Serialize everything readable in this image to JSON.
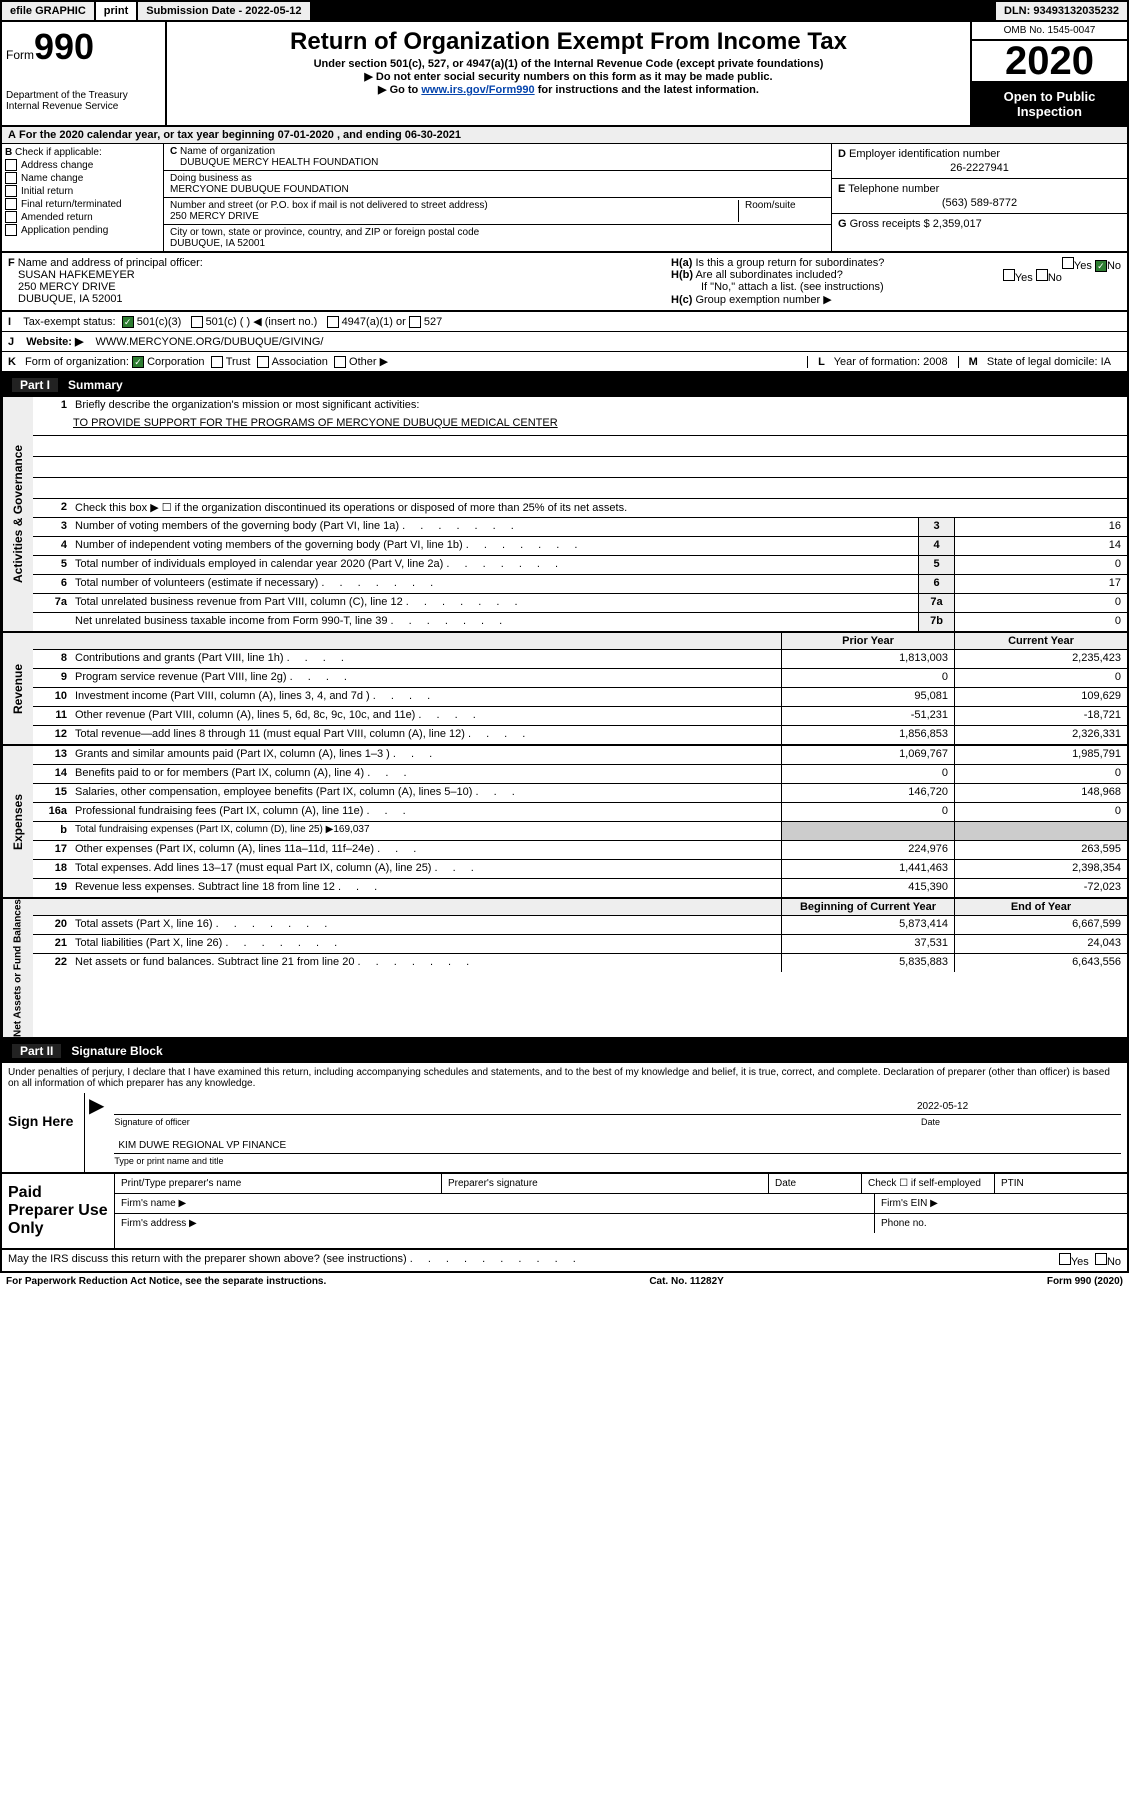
{
  "topbar": {
    "efile": "efile GRAPHIC",
    "print": "print",
    "submission": "Submission Date - 2022-05-12",
    "dln": "DLN: 93493132035232"
  },
  "header": {
    "form_prefix": "Form",
    "form_number": "990",
    "dept": "Department of the Treasury",
    "irs": "Internal Revenue Service",
    "title": "Return of Organization Exempt From Income Tax",
    "subtitle": "Under section 501(c), 527, or 4947(a)(1) of the Internal Revenue Code (except private foundations)",
    "note1": "Do not enter social security numbers on this form as it may be made public.",
    "note2_pre": "Go to ",
    "note2_link": "www.irs.gov/Form990",
    "note2_post": " for instructions and the latest information.",
    "omb": "OMB No. 1545-0047",
    "year": "2020",
    "inspect": "Open to Public Inspection"
  },
  "taxyear": "For the 2020 calendar year, or tax year beginning 07-01-2020   , and ending 06-30-2021",
  "boxB": {
    "label": "Check if applicable:",
    "items": [
      "Address change",
      "Name change",
      "Initial return",
      "Final return/terminated",
      "Amended return",
      "Application pending"
    ]
  },
  "boxC": {
    "label_name": "Name of organization",
    "name": "DUBUQUE MERCY HEALTH FOUNDATION",
    "dba_label": "Doing business as",
    "dba": "MERCYONE DUBUQUE FOUNDATION",
    "addr_label": "Number and street (or P.O. box if mail is not delivered to street address)",
    "room_label": "Room/suite",
    "addr": "250 MERCY DRIVE",
    "city_label": "City or town, state or province, country, and ZIP or foreign postal code",
    "city": "DUBUQUE, IA  52001"
  },
  "boxD": {
    "label": "Employer identification number",
    "val": "26-2227941"
  },
  "boxE": {
    "label": "Telephone number",
    "val": "(563) 589-8772"
  },
  "boxG": {
    "label": "Gross receipts $",
    "val": "2,359,017"
  },
  "boxF": {
    "label": "Name and address of principal officer:",
    "name": "SUSAN HAFKEMEYER",
    "addr1": "250 MERCY DRIVE",
    "addr2": "DUBUQUE, IA  52001"
  },
  "boxH": {
    "a_label": "Is this a group return for subordinates?",
    "b_label": "Are all subordinates included?",
    "attach": "If \"No,\" attach a list. (see instructions)",
    "c_label": "Group exemption number ▶"
  },
  "taxstatus": {
    "label": "Tax-exempt status:",
    "o1": "501(c)(3)",
    "o2": "501(c) (   ) ◀ (insert no.)",
    "o3": "4947(a)(1) or",
    "o4": "527"
  },
  "website": {
    "label": "Website: ▶",
    "val": "WWW.MERCYONE.ORG/DUBUQUE/GIVING/"
  },
  "Krow": {
    "label": "Form of organization:",
    "o1": "Corporation",
    "o2": "Trust",
    "o3": "Association",
    "o4": "Other ▶",
    "L": "Year of formation: 2008",
    "M": "State of legal domicile: IA"
  },
  "part1": {
    "part": "Part I",
    "label": "Summary",
    "mission_label": "Briefly describe the organization's mission or most significant activities:",
    "mission": "TO PROVIDE SUPPORT FOR THE PROGRAMS OF MERCYONE DUBUQUE MEDICAL CENTER",
    "line2": "Check this box ▶ ☐  if the organization discontinued its operations or disposed of more than 25% of its net assets.",
    "gov_label": "Activities & Governance",
    "rev_label": "Revenue",
    "exp_label": "Expenses",
    "na_label": "Net Assets or Fund Balances",
    "rows_gov": [
      {
        "n": "3",
        "d": "Number of voting members of the governing body (Part VI, line 1a)",
        "b": "3",
        "v": "16"
      },
      {
        "n": "4",
        "d": "Number of independent voting members of the governing body (Part VI, line 1b)",
        "b": "4",
        "v": "14"
      },
      {
        "n": "5",
        "d": "Total number of individuals employed in calendar year 2020 (Part V, line 2a)",
        "b": "5",
        "v": "0"
      },
      {
        "n": "6",
        "d": "Total number of volunteers (estimate if necessary)",
        "b": "6",
        "v": "17"
      },
      {
        "n": "7a",
        "d": "Total unrelated business revenue from Part VIII, column (C), line 12",
        "b": "7a",
        "v": "0"
      },
      {
        "n": "",
        "d": "Net unrelated business taxable income from Form 990-T, line 39",
        "b": "7b",
        "v": "0"
      }
    ],
    "py_head": "Prior Year",
    "cy_head": "Current Year",
    "rows_rev": [
      {
        "n": "8",
        "d": "Contributions and grants (Part VIII, line 1h)",
        "py": "1,813,003",
        "cy": "2,235,423"
      },
      {
        "n": "9",
        "d": "Program service revenue (Part VIII, line 2g)",
        "py": "0",
        "cy": "0"
      },
      {
        "n": "10",
        "d": "Investment income (Part VIII, column (A), lines 3, 4, and 7d )",
        "py": "95,081",
        "cy": "109,629"
      },
      {
        "n": "11",
        "d": "Other revenue (Part VIII, column (A), lines 5, 6d, 8c, 9c, 10c, and 11e)",
        "py": "-51,231",
        "cy": "-18,721"
      },
      {
        "n": "12",
        "d": "Total revenue—add lines 8 through 11 (must equal Part VIII, column (A), line 12)",
        "py": "1,856,853",
        "cy": "2,326,331"
      }
    ],
    "rows_exp": [
      {
        "n": "13",
        "d": "Grants and similar amounts paid (Part IX, column (A), lines 1–3 )",
        "py": "1,069,767",
        "cy": "1,985,791"
      },
      {
        "n": "14",
        "d": "Benefits paid to or for members (Part IX, column (A), line 4)",
        "py": "0",
        "cy": "0"
      },
      {
        "n": "15",
        "d": "Salaries, other compensation, employee benefits (Part IX, column (A), lines 5–10)",
        "py": "146,720",
        "cy": "148,968"
      },
      {
        "n": "16a",
        "d": "Professional fundraising fees (Part IX, column (A), line 11e)",
        "py": "0",
        "cy": "0"
      },
      {
        "n": "b",
        "d": "Total fundraising expenses (Part IX, column (D), line 25) ▶169,037",
        "shaded": true
      },
      {
        "n": "17",
        "d": "Other expenses (Part IX, column (A), lines 11a–11d, 11f–24e)",
        "py": "224,976",
        "cy": "263,595"
      },
      {
        "n": "18",
        "d": "Total expenses. Add lines 13–17 (must equal Part IX, column (A), line 25)",
        "py": "1,441,463",
        "cy": "2,398,354"
      },
      {
        "n": "19",
        "d": "Revenue less expenses. Subtract line 18 from line 12",
        "py": "415,390",
        "cy": "-72,023"
      }
    ],
    "boy_head": "Beginning of Current Year",
    "eoy_head": "End of Year",
    "rows_na": [
      {
        "n": "20",
        "d": "Total assets (Part X, line 16)",
        "py": "5,873,414",
        "cy": "6,667,599"
      },
      {
        "n": "21",
        "d": "Total liabilities (Part X, line 26)",
        "py": "37,531",
        "cy": "24,043"
      },
      {
        "n": "22",
        "d": "Net assets or fund balances. Subtract line 21 from line 20",
        "py": "5,835,883",
        "cy": "6,643,556"
      }
    ]
  },
  "part2": {
    "part": "Part II",
    "label": "Signature Block"
  },
  "penalty": "Under penalties of perjury, I declare that I have examined this return, including accompanying schedules and statements, and to the best of my knowledge and belief, it is true, correct, and complete. Declaration of preparer (other than officer) is based on all information of which preparer has any knowledge.",
  "sign": {
    "here": "Sign Here",
    "officer_label": "Signature of officer",
    "date_label": "Date",
    "date_val": "2022-05-12",
    "name": "KIM DUWE  REGIONAL VP FINANCE",
    "name_label": "Type or print name and title"
  },
  "prep": {
    "label": "Paid Preparer Use Only",
    "h1": "Print/Type preparer's name",
    "h2": "Preparer's signature",
    "h3": "Date",
    "h4": "Check ☐ if self-employed",
    "h5": "PTIN",
    "firm_name": "Firm's name   ▶",
    "firm_ein": "Firm's EIN ▶",
    "firm_addr": "Firm's address ▶",
    "phone": "Phone no."
  },
  "discuss": "May the IRS discuss this return with the preparer shown above? (see instructions)",
  "yes": "Yes",
  "no": "No",
  "paperwork": "For Paperwork Reduction Act Notice, see the separate instructions.",
  "cat": "Cat. No. 11282Y",
  "formfoot": "Form 990 (2020)"
}
